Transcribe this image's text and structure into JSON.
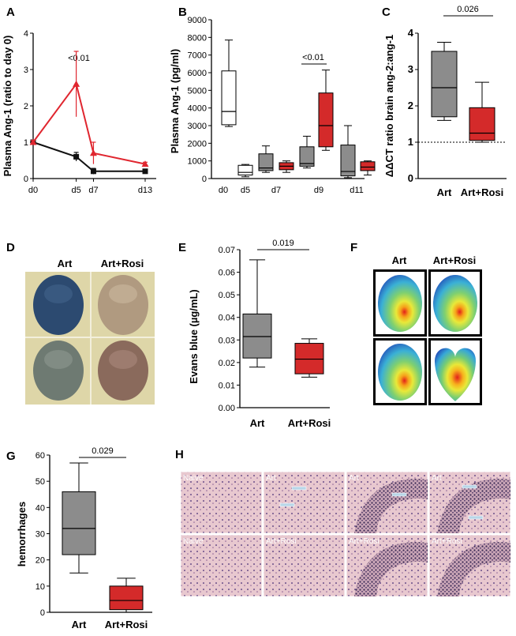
{
  "colors": {
    "art": "#8c8c8c",
    "rosi": "#d42a2a",
    "line_art": "#111111",
    "line_rosi": "#e0262f"
  },
  "chart_data": [
    {
      "panel": "A",
      "type": "line",
      "ylabel": "Plasma Ang-1 (ratio to day 0)",
      "x_labels": [
        "d0",
        "d5",
        "d7",
        "d13"
      ],
      "x": [
        0,
        5,
        7,
        13
      ],
      "ylim": [
        0,
        4
      ],
      "yticks": [
        "0",
        "1",
        "2",
        "3",
        "4"
      ],
      "series": [
        {
          "key": "art",
          "values": [
            1.0,
            0.6,
            0.2,
            0.2
          ],
          "err": [
            0.05,
            0.12,
            0.08,
            0.05
          ]
        },
        {
          "key": "rosi",
          "values": [
            1.0,
            2.6,
            0.7,
            0.4
          ],
          "err": [
            0.05,
            0.9,
            0.3,
            0.05
          ]
        }
      ],
      "annotation": "<0.01"
    },
    {
      "panel": "B",
      "type": "box",
      "ylabel": "Plasma Ang-1 (pg/ml)",
      "ylim": [
        0,
        9000
      ],
      "yticks": [
        "0",
        "1000",
        "2000",
        "3000",
        "4000",
        "5000",
        "6000",
        "7000",
        "8000",
        "9000"
      ],
      "x_labels": [
        "d0",
        "d5",
        "d7",
        "d9",
        "d11"
      ],
      "boxes": [
        {
          "day": "d0",
          "group": "naive",
          "min": 2950,
          "q1": 3050,
          "median": 3800,
          "q3": 6100,
          "max": 7850
        },
        {
          "day": "d5",
          "group": "naive",
          "min": 100,
          "q1": 200,
          "median": 350,
          "q3": 750,
          "max": 800
        },
        {
          "day": "d7",
          "group": "art",
          "min": 350,
          "q1": 450,
          "median": 600,
          "q3": 1400,
          "max": 1850
        },
        {
          "day": "d7",
          "group": "rosi",
          "min": 350,
          "q1": 500,
          "median": 700,
          "q3": 900,
          "max": 1000
        },
        {
          "day": "d9",
          "group": "art",
          "min": 600,
          "q1": 700,
          "median": 850,
          "q3": 1800,
          "max": 2400
        },
        {
          "day": "d9",
          "group": "rosi",
          "min": 1600,
          "q1": 1800,
          "median": 3000,
          "q3": 4850,
          "max": 6150
        },
        {
          "day": "d11",
          "group": "art",
          "min": 50,
          "q1": 150,
          "median": 400,
          "q3": 1900,
          "max": 3000
        },
        {
          "day": "d11",
          "group": "rosi",
          "min": 200,
          "q1": 450,
          "median": 650,
          "q3": 950,
          "max": 1000
        }
      ],
      "annotation": "<0.01"
    },
    {
      "panel": "C",
      "type": "box",
      "ylabel": "ΔΔCT ratio brain ang-2:ang-1",
      "ylim": [
        0,
        4
      ],
      "yticks": [
        "0",
        "1",
        "2",
        "3",
        "4"
      ],
      "categories": [
        "Art",
        "Art+Rosi"
      ],
      "boxes": [
        {
          "group": "art",
          "min": 1.6,
          "q1": 1.7,
          "median": 2.5,
          "q3": 3.5,
          "max": 3.75
        },
        {
          "group": "rosi",
          "min": 1.0,
          "q1": 1.05,
          "median": 1.25,
          "q3": 1.95,
          "max": 2.65
        }
      ],
      "reference_line": 1,
      "pvalue": "0.026"
    },
    {
      "panel": "E",
      "type": "box",
      "ylabel": "Evans blue (µg/mL)",
      "ylim": [
        0,
        0.07
      ],
      "yticks": [
        "0.00",
        "0.01",
        "0.02",
        "0.03",
        "0.04",
        "0.05",
        "0.06",
        "0.07"
      ],
      "categories": [
        "Art",
        "Art+Rosi"
      ],
      "boxes": [
        {
          "group": "art",
          "min": 0.018,
          "q1": 0.022,
          "median": 0.0315,
          "q3": 0.0415,
          "max": 0.0655
        },
        {
          "group": "rosi",
          "min": 0.0135,
          "q1": 0.015,
          "median": 0.0215,
          "q3": 0.0285,
          "max": 0.0305
        }
      ],
      "pvalue": "0.019"
    },
    {
      "panel": "G",
      "type": "box",
      "ylabel": "hemorrhages",
      "ylim": [
        0,
        60
      ],
      "yticks": [
        "0",
        "10",
        "20",
        "30",
        "40",
        "50",
        "60"
      ],
      "categories": [
        "Art",
        "Art+Rosi"
      ],
      "boxes": [
        {
          "group": "art",
          "min": 15,
          "q1": 22,
          "median": 32,
          "q3": 46,
          "max": 57
        },
        {
          "group": "rosi",
          "min": 0,
          "q1": 1,
          "median": 4.5,
          "q3": 10,
          "max": 13
        }
      ],
      "pvalue": "0.029"
    }
  ],
  "panelD": {
    "letter": "D",
    "col1": "Art",
    "col2": "Art+Rosi"
  },
  "panelF": {
    "letter": "F",
    "col1": "Art",
    "col2": "Art+Rosi"
  },
  "panelH": {
    "letter": "H",
    "tiles_top": [
      "Naive",
      "Art",
      "Art",
      "Art"
    ],
    "tiles_bottom": [
      "Naive",
      "Art+Rosi",
      "Art+Rosi",
      "Art+Rosi"
    ]
  }
}
